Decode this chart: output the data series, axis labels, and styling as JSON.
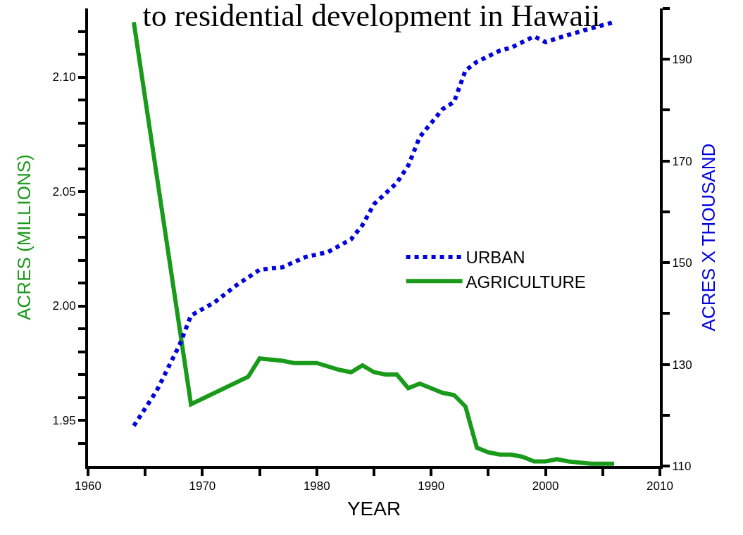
{
  "chart_data": {
    "type": "line",
    "title": "to residential development in Hawaii",
    "xlabel": "YEAR",
    "ylabel": "ACRES (MILLIONS)",
    "y2label": "ACRES X THOUSAND",
    "xlim": [
      1960,
      2010
    ],
    "xticks": [
      1960,
      {
        "value": 1965,
        "label": null
      },
      1970,
      {
        "value": 1975,
        "label": null
      },
      1980,
      {
        "value": 1985,
        "label": null
      },
      1990,
      {
        "value": 1995,
        "label": null
      },
      2000,
      {
        "value": 2005,
        "label": null
      },
      2010
    ],
    "ylim": [
      1.93,
      2.13
    ],
    "yticks": [
      {
        "value": 1.94,
        "label": null
      },
      1.95,
      {
        "value": 1.96,
        "label": null
      },
      {
        "value": 1.97,
        "label": null
      },
      {
        "value": 1.98,
        "label": null
      },
      {
        "value": 1.99,
        "label": null
      },
      {
        "value": 2.0,
        "label": "2.00"
      },
      {
        "value": 2.01,
        "label": null
      },
      {
        "value": 2.02,
        "label": null
      },
      {
        "value": 2.03,
        "label": null
      },
      {
        "value": 2.04,
        "label": null
      },
      {
        "value": 2.05,
        "label": "2.05"
      },
      {
        "value": 2.06,
        "label": null
      },
      {
        "value": 2.07,
        "label": null
      },
      {
        "value": 2.08,
        "label": null
      },
      {
        "value": 2.09,
        "label": null
      },
      {
        "value": 2.1,
        "label": "2.10"
      },
      {
        "value": 2.11,
        "label": null
      },
      {
        "value": 2.12,
        "label": null
      }
    ],
    "y2lim": [
      110,
      200
    ],
    "y2ticks": [
      110,
      {
        "value": 120,
        "label": null
      },
      130,
      {
        "value": 140,
        "label": null
      },
      150,
      {
        "value": 160,
        "label": null
      },
      170,
      {
        "value": 180,
        "label": null
      },
      190,
      {
        "value": 200,
        "label": null
      }
    ],
    "grid": false,
    "legend": "right",
    "marker": "none",
    "series": [
      {
        "name": "URBAN",
        "color": "#0000dd",
        "axis": "y2",
        "line_style": "dotted",
        "x": [
          1964,
          1966,
          1968,
          1969,
          1971,
          1973,
          1975,
          1977,
          1979,
          1981,
          1983,
          1984,
          1985,
          1987,
          1988,
          1989,
          1991,
          1992,
          1993,
          1994,
          1996,
          1997,
          1999,
          2000,
          2002,
          2004,
          2006
        ],
        "values": [
          117.9,
          124.8,
          133.8,
          139.6,
          142.1,
          145.6,
          148.6,
          149.1,
          151.1,
          152.1,
          154.6,
          157.4,
          161.5,
          165.7,
          169.1,
          174.7,
          180.2,
          181.6,
          187.8,
          189.5,
          191.7,
          192.3,
          194.5,
          193.4,
          194.8,
          196.1,
          197.3
        ]
      },
      {
        "name": "AGRICULTURE",
        "color": "#1a9a1a",
        "line_style": "solid",
        "x": [
          1964,
          1969,
          1974,
          1975,
          1977,
          1978,
          1980,
          1982,
          1983,
          1984,
          1985,
          1986,
          1987,
          1988,
          1989,
          1990,
          1991,
          1992,
          1993,
          1994,
          1995,
          1996,
          1997,
          1998,
          1999,
          2000,
          2001,
          2002,
          2004,
          2006
        ],
        "values": [
          2.124,
          1.957,
          1.969,
          1.977,
          1.976,
          1.975,
          1.975,
          1.972,
          1.971,
          1.974,
          1.971,
          1.97,
          1.97,
          1.964,
          1.966,
          1.964,
          1.962,
          1.961,
          1.956,
          1.938,
          1.936,
          1.935,
          1.935,
          1.934,
          1.932,
          1.932,
          1.933,
          1.932,
          1.931,
          1.931
        ]
      }
    ]
  }
}
